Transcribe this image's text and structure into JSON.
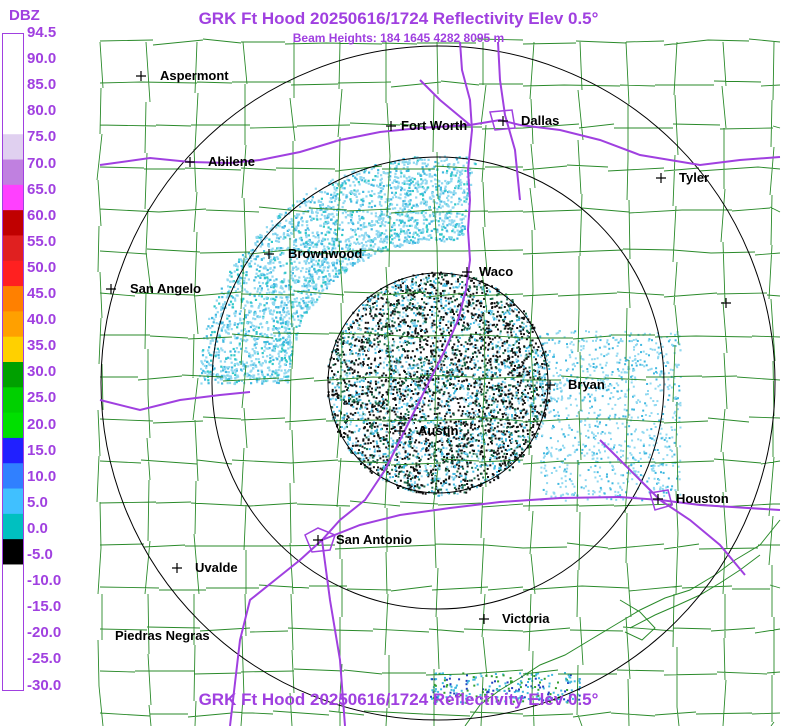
{
  "title": "GRK Ft Hood 20250616/1724 Reflectivity Elev 0.5°",
  "subtitle": "Beam Heights: 184 1645 4282 8095 m",
  "footer_title": "GRK Ft Hood 20250616/1724 Reflectivity Elev 0.5°",
  "legend": {
    "unit": "DBZ",
    "labels": [
      "94.5",
      "90.0",
      "85.0",
      "80.0",
      "75.0",
      "70.0",
      "65.0",
      "60.0",
      "55.0",
      "50.0",
      "45.0",
      "40.0",
      "35.0",
      "30.0",
      "25.0",
      "20.0",
      "15.0",
      "10.0",
      "5.0",
      "0.0",
      "-5.0",
      "-10.0",
      "-15.0",
      "-20.0",
      "-25.0",
      "-30.0"
    ],
    "colors": [
      "#ffffff",
      "#ffffff",
      "#ffffff",
      "#ffffff",
      "#e0d0f0",
      "#c080e0",
      "#ff40ff",
      "#c00000",
      "#e02020",
      "#ff2020",
      "#ff8000",
      "#ffa000",
      "#ffd000",
      "#00a000",
      "#00d000",
      "#00e000",
      "#2020ff",
      "#3080ff",
      "#40c0ff",
      "#00c0c0",
      "#000000",
      "#ffffff",
      "#ffffff",
      "#ffffff",
      "#ffffff",
      "#ffffff"
    ]
  },
  "cities": [
    {
      "name": "Aspermont"
    },
    {
      "name": "Fort Worth"
    },
    {
      "name": "Dallas"
    },
    {
      "name": "Abilene"
    },
    {
      "name": "Tyler"
    },
    {
      "name": "Brownwood"
    },
    {
      "name": "Waco"
    },
    {
      "name": "San Angelo"
    },
    {
      "name": "Bryan"
    },
    {
      "name": "Austin"
    },
    {
      "name": "Houston"
    },
    {
      "name": "San Antonio"
    },
    {
      "name": "Uvalde"
    },
    {
      "name": "Victoria"
    },
    {
      "name": "Piedras Negras"
    },
    {
      "name": ""
    }
  ],
  "colors": {
    "title": "#a040e0",
    "county_lines": "#2a8a2a",
    "highways": "#a040e0",
    "range_rings": "#000000",
    "echo_light": "#8fd8f0",
    "echo_mid": "#40b8e0",
    "echo_cyan": "#30c8c8"
  }
}
